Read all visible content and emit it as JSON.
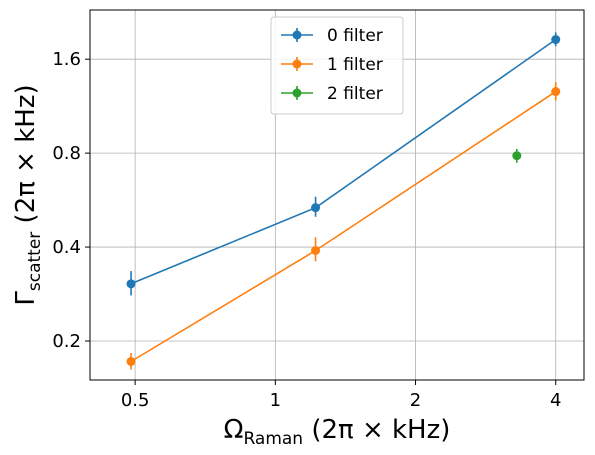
{
  "chart_data": {
    "type": "scatter",
    "xscale": "log",
    "yscale": "log",
    "xlim": [
      0.4,
      4.6
    ],
    "ylim": [
      0.15,
      2.3
    ],
    "xticks": [
      {
        "value": 0.5,
        "label": "0.5"
      },
      {
        "value": 1,
        "label": "1"
      },
      {
        "value": 2,
        "label": "2"
      },
      {
        "value": 4,
        "label": "4"
      }
    ],
    "yticks": [
      {
        "value": 0.2,
        "label": "0.2"
      },
      {
        "value": 0.4,
        "label": "0.4"
      },
      {
        "value": 0.8,
        "label": "0.8"
      },
      {
        "value": 1.6,
        "label": "1.6"
      }
    ],
    "xlabel": {
      "main": "Ω",
      "sub": "Raman",
      "rest": " (2π × kHz)"
    },
    "ylabel": {
      "main": "Γ",
      "sub": "scatter",
      "rest": " (2π × kHz)"
    },
    "grid": true,
    "legend_position": "top-center",
    "series": [
      {
        "name": "0 filter",
        "color": "#1f77b4",
        "lines": true,
        "points": [
          {
            "x": 0.49,
            "y": 0.305,
            "yerr_low": 0.28,
            "yerr_high": 0.335
          },
          {
            "x": 1.22,
            "y": 0.535,
            "yerr_low": 0.5,
            "yerr_high": 0.58
          },
          {
            "x": 4.0,
            "y": 1.85,
            "yerr_low": 1.76,
            "yerr_high": 1.95
          }
        ]
      },
      {
        "name": "1 filter",
        "color": "#ff7f0e",
        "lines": true,
        "points": [
          {
            "x": 0.49,
            "y": 0.172,
            "yerr_low": 0.162,
            "yerr_high": 0.183
          },
          {
            "x": 1.22,
            "y": 0.39,
            "yerr_low": 0.36,
            "yerr_high": 0.43
          },
          {
            "x": 4.0,
            "y": 1.26,
            "yerr_low": 1.18,
            "yerr_high": 1.35
          }
        ]
      },
      {
        "name": "2 filter",
        "color": "#2ca02c",
        "lines": false,
        "points": [
          {
            "x": 3.3,
            "y": 0.785,
            "yerr_low": 0.745,
            "yerr_high": 0.825
          }
        ]
      }
    ]
  }
}
